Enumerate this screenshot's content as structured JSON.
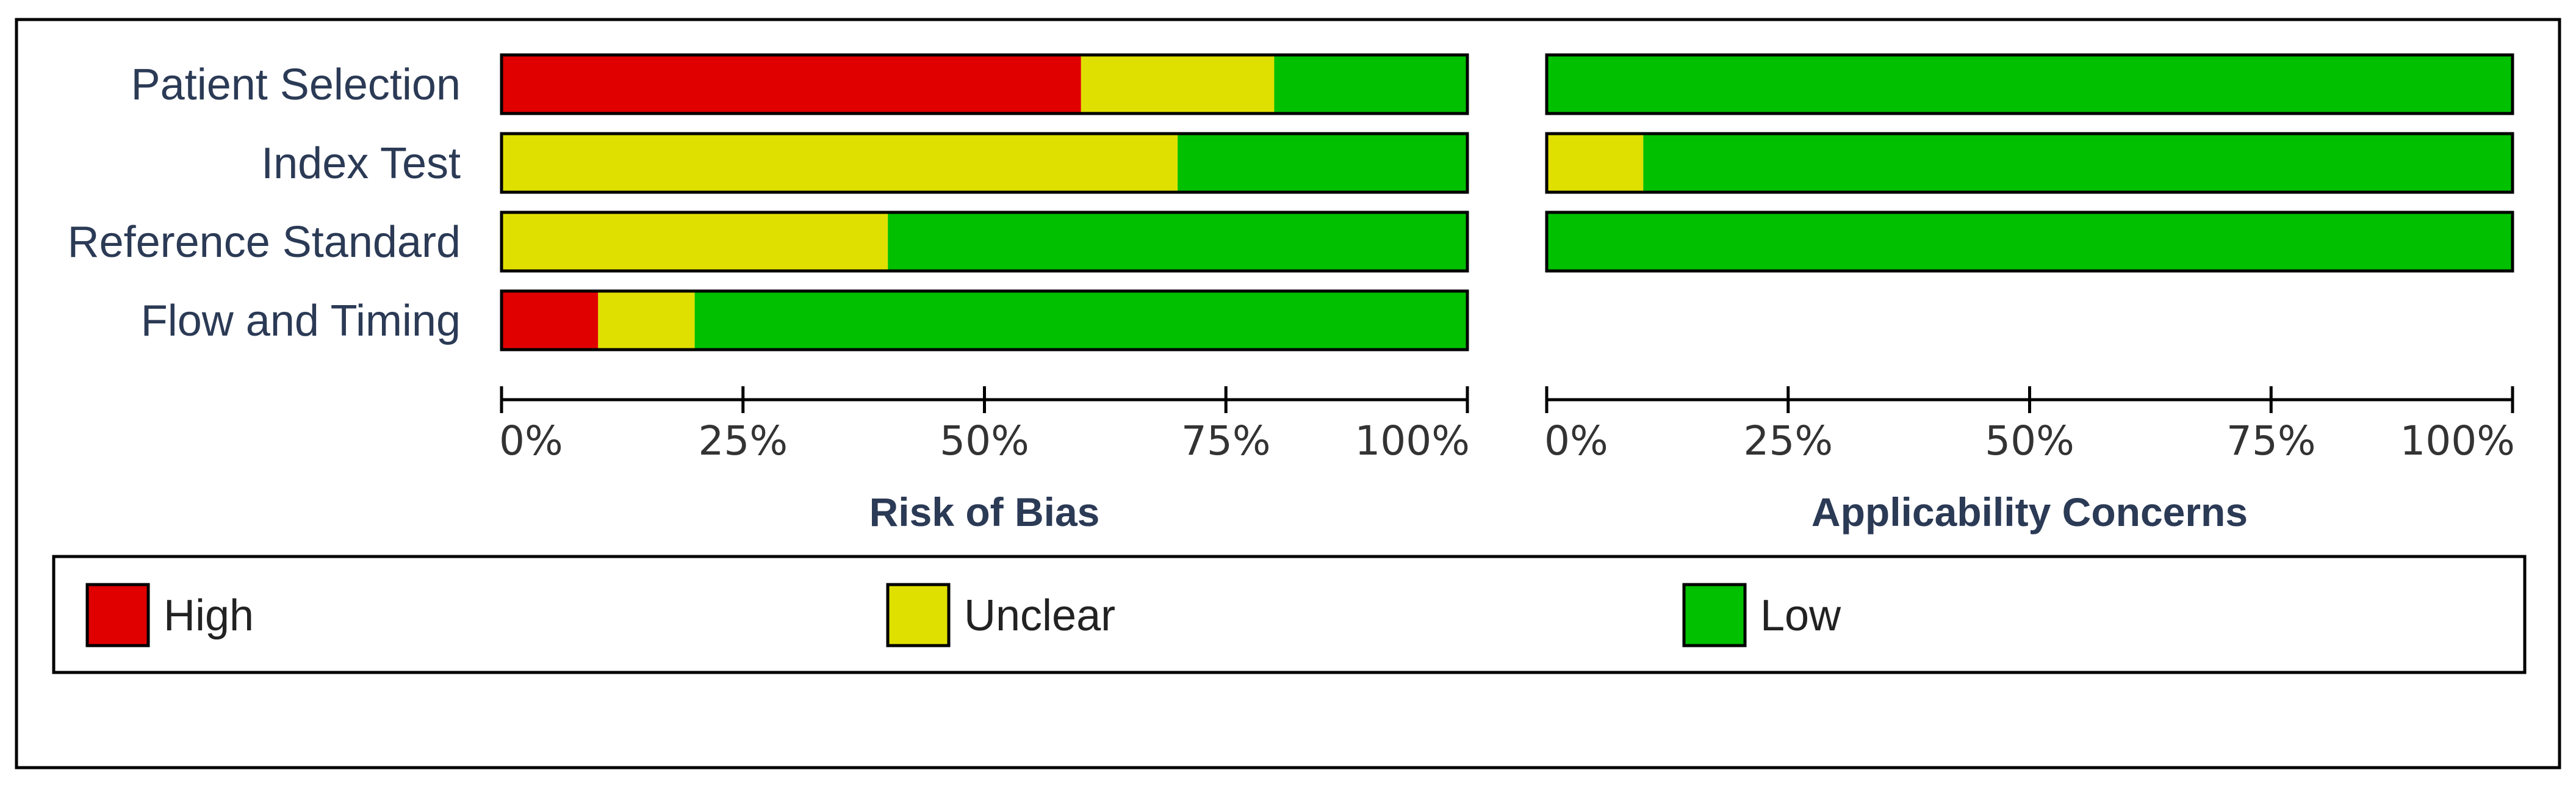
{
  "chart_data": {
    "type": "bar",
    "orientation": "horizontal",
    "stacked": true,
    "categories": [
      "Patient Selection",
      "Index Test",
      "Reference Standard",
      "Flow and Timing"
    ],
    "x_ticks": [
      "0%",
      "25%",
      "50%",
      "75%",
      "100%"
    ],
    "xlim": [
      0,
      100
    ],
    "legend": {
      "placement": "bottom",
      "entries": [
        {
          "name": "High",
          "color": "#e00000"
        },
        {
          "name": "Unclear",
          "color": "#e0e000"
        },
        {
          "name": "Low",
          "color": "#00c000"
        }
      ]
    },
    "panels": [
      {
        "title": "Risk of Bias",
        "series": [
          {
            "name": "High",
            "values": [
              60,
              0,
              0,
              10
            ]
          },
          {
            "name": "Unclear",
            "values": [
              20,
              70,
              40,
              10
            ]
          },
          {
            "name": "Low",
            "values": [
              20,
              30,
              60,
              80
            ]
          }
        ]
      },
      {
        "title": "Applicability Concerns",
        "series": [
          {
            "name": "High",
            "values": [
              0,
              0,
              0,
              null
            ]
          },
          {
            "name": "Unclear",
            "values": [
              0,
              10,
              0,
              null
            ]
          },
          {
            "name": "Low",
            "values": [
              100,
              90,
              100,
              null
            ]
          }
        ]
      }
    ]
  }
}
